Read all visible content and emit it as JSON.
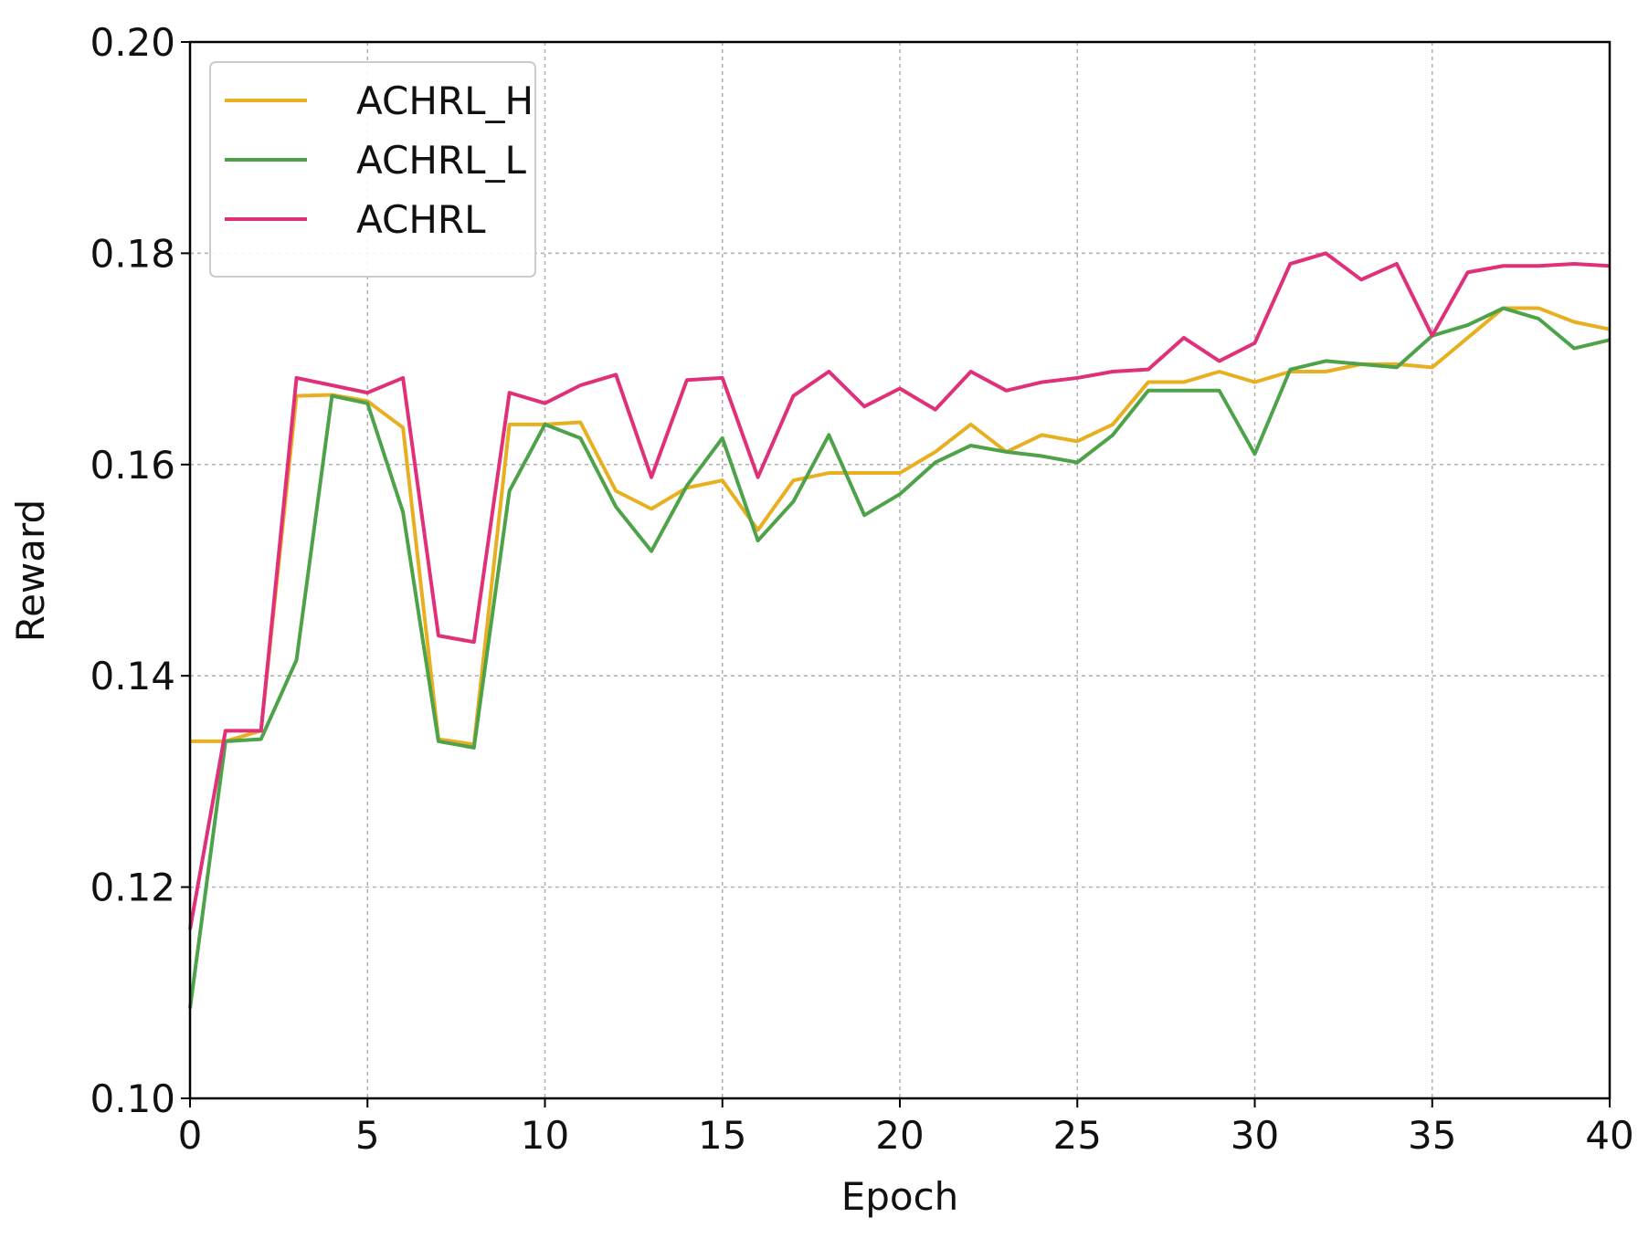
{
  "chart_data": {
    "type": "line",
    "x_label": "Epoch",
    "y_label": "Reward",
    "x": [
      0,
      1,
      2,
      3,
      4,
      5,
      6,
      7,
      8,
      9,
      10,
      11,
      12,
      13,
      14,
      15,
      16,
      17,
      18,
      19,
      20,
      21,
      22,
      23,
      24,
      25,
      26,
      27,
      28,
      29,
      30,
      31,
      32,
      33,
      34,
      35,
      36,
      37,
      38,
      39,
      40
    ],
    "series": [
      {
        "name": "ACHRL_H",
        "color": "#e8b020",
        "values": [
          0.1338,
          0.1338,
          0.1348,
          0.1665,
          0.1666,
          0.166,
          0.1635,
          0.134,
          0.1335,
          0.1638,
          0.1638,
          0.164,
          0.1575,
          0.1558,
          0.1578,
          0.1585,
          0.1538,
          0.1585,
          0.1592,
          0.1592,
          0.1592,
          0.1612,
          0.1638,
          0.1612,
          0.1628,
          0.1622,
          0.1638,
          0.1678,
          0.1678,
          0.1688,
          0.1678,
          0.1688,
          0.1688,
          0.1695,
          0.1695,
          0.1692,
          0.172,
          0.1748,
          0.1748,
          0.1735,
          0.1728
        ]
      },
      {
        "name": "ACHRL_L",
        "color": "#4ea24a",
        "values": [
          0.1085,
          0.1338,
          0.134,
          0.1415,
          0.1665,
          0.1658,
          0.1555,
          0.1338,
          0.1332,
          0.1575,
          0.1638,
          0.1625,
          0.156,
          0.1518,
          0.158,
          0.1625,
          0.1528,
          0.1565,
          0.1628,
          0.1552,
          0.1572,
          0.1602,
          0.1618,
          0.1612,
          0.1608,
          0.1602,
          0.1628,
          0.167,
          0.167,
          0.167,
          0.161,
          0.169,
          0.1698,
          0.1695,
          0.1692,
          0.1722,
          0.1732,
          0.1748,
          0.1738,
          0.171,
          0.1718
        ]
      },
      {
        "name": "ACHRL",
        "color": "#e0307a",
        "values": [
          0.116,
          0.1348,
          0.1348,
          0.1682,
          0.1675,
          0.1668,
          0.1682,
          0.1438,
          0.1432,
          0.1668,
          0.1658,
          0.1675,
          0.1685,
          0.1588,
          0.168,
          0.1682,
          0.1588,
          0.1665,
          0.1688,
          0.1655,
          0.1672,
          0.1652,
          0.1688,
          0.167,
          0.1678,
          0.1682,
          0.1688,
          0.169,
          0.172,
          0.1698,
          0.1715,
          0.179,
          0.18,
          0.1775,
          0.179,
          0.1722,
          0.1782,
          0.1788,
          0.1788,
          0.179,
          0.1788
        ]
      }
    ],
    "xlim": [
      0,
      40
    ],
    "xticks": [
      0,
      5,
      10,
      15,
      20,
      25,
      30,
      35,
      40
    ],
    "ylim": [
      0.1,
      0.2
    ],
    "yticks": [
      {
        "value": 0.1,
        "label": "0.10"
      },
      0.12,
      0.14,
      0.16,
      0.18,
      {
        "value": 0.2,
        "label": "0.20"
      }
    ],
    "grid": true,
    "legend": "upper left"
  }
}
